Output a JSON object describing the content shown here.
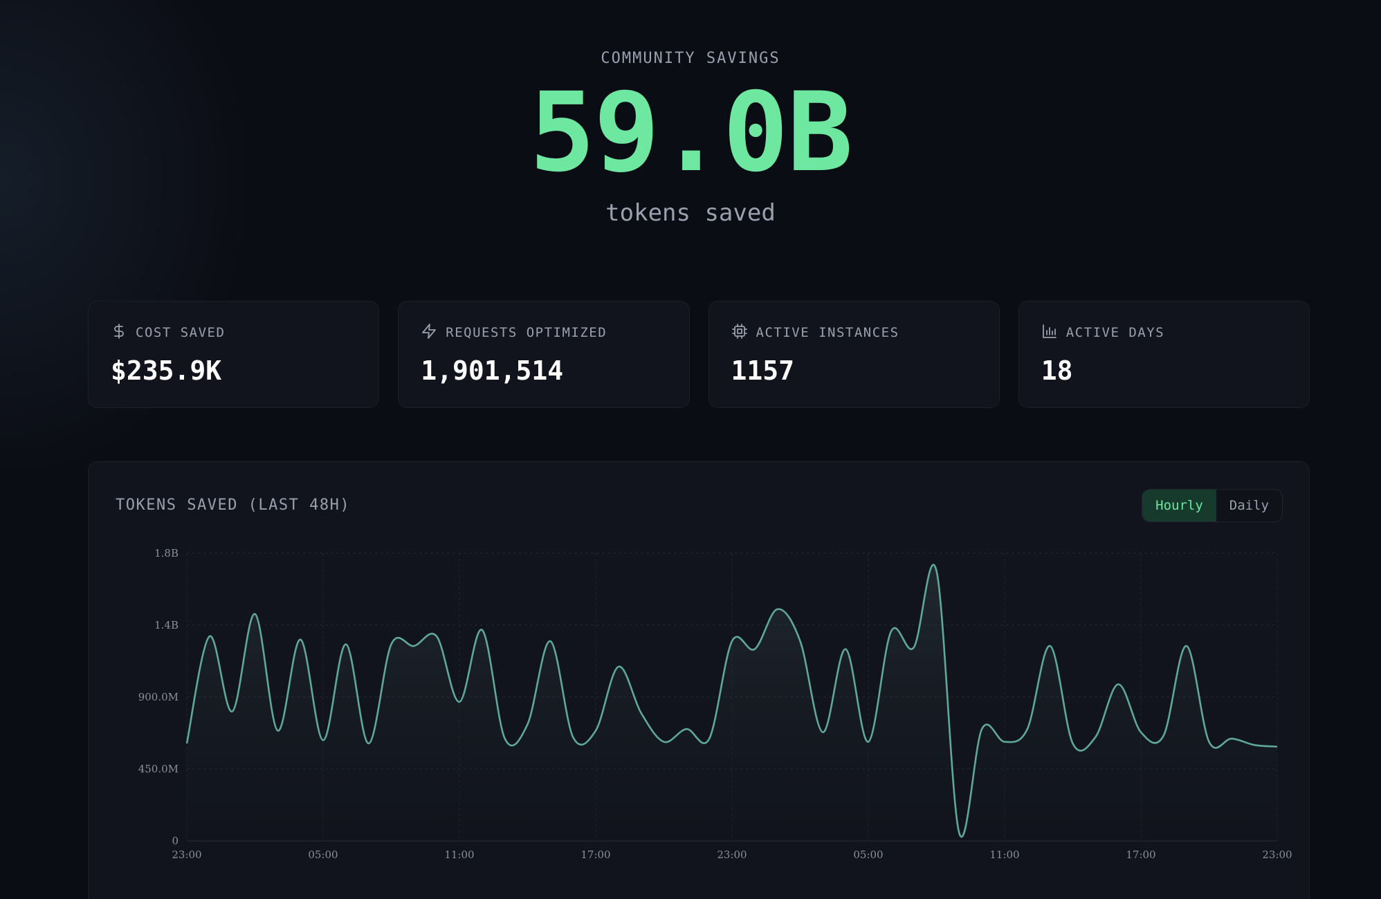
{
  "hero": {
    "eyebrow": "COMMUNITY SAVINGS",
    "value": "59.0B",
    "subtitle": "tokens saved"
  },
  "cards": [
    {
      "icon": "dollar-icon",
      "label": "COST SAVED",
      "value": "$235.9K"
    },
    {
      "icon": "lightning-icon",
      "label": "REQUESTS OPTIMIZED",
      "value": "1,901,514"
    },
    {
      "icon": "cpu-icon",
      "label": "ACTIVE INSTANCES",
      "value": "1157"
    },
    {
      "icon": "bar-chart-icon",
      "label": "ACTIVE DAYS",
      "value": "18"
    }
  ],
  "panel": {
    "title": "TOKENS SAVED (LAST 48H)",
    "toggle": {
      "hourly": "Hourly",
      "daily": "Daily",
      "selected": "Hourly"
    }
  },
  "colors": {
    "accent": "#6ee7a0",
    "line": "#5fa89c",
    "background": "#0b0d14",
    "card": "#11141c"
  },
  "chart_data": {
    "type": "area",
    "title": "TOKENS SAVED (LAST 48H)",
    "xlabel": "",
    "ylabel": "",
    "grid": true,
    "legend": "none",
    "ylim": [
      0,
      1800000000
    ],
    "y_ticks": [
      {
        "value": 0,
        "label": "0"
      },
      {
        "value": 450000000,
        "label": "450.0M"
      },
      {
        "value": 900000000,
        "label": "900.0M"
      },
      {
        "value": 1350000000,
        "label": "1.4B"
      },
      {
        "value": 1800000000,
        "label": "1.8B"
      }
    ],
    "x_ticks": [
      {
        "index": 0,
        "label": "23:00"
      },
      {
        "index": 6,
        "label": "05:00"
      },
      {
        "index": 12,
        "label": "11:00"
      },
      {
        "index": 18,
        "label": "17:00"
      },
      {
        "index": 24,
        "label": "23:00"
      },
      {
        "index": 30,
        "label": "05:00"
      },
      {
        "index": 36,
        "label": "11:00"
      },
      {
        "index": 42,
        "label": "17:00"
      },
      {
        "index": 48,
        "label": "23:00"
      }
    ],
    "series": [
      {
        "values": [
          610000000,
          1280000000,
          810000000,
          1420000000,
          690000000,
          1260000000,
          630000000,
          1230000000,
          610000000,
          1230000000,
          1220000000,
          1280000000,
          870000000,
          1320000000,
          640000000,
          730000000,
          1250000000,
          650000000,
          690000000,
          1090000000,
          800000000,
          620000000,
          700000000,
          640000000,
          1250000000,
          1200000000,
          1450000000,
          1250000000,
          680000000,
          1200000000,
          620000000,
          1310000000,
          1210000000,
          1690000000,
          50000000,
          700000000,
          620000000,
          700000000,
          1220000000,
          610000000,
          650000000,
          980000000,
          680000000,
          660000000,
          1220000000,
          620000000,
          640000000,
          600000000,
          590000000
        ]
      }
    ]
  }
}
